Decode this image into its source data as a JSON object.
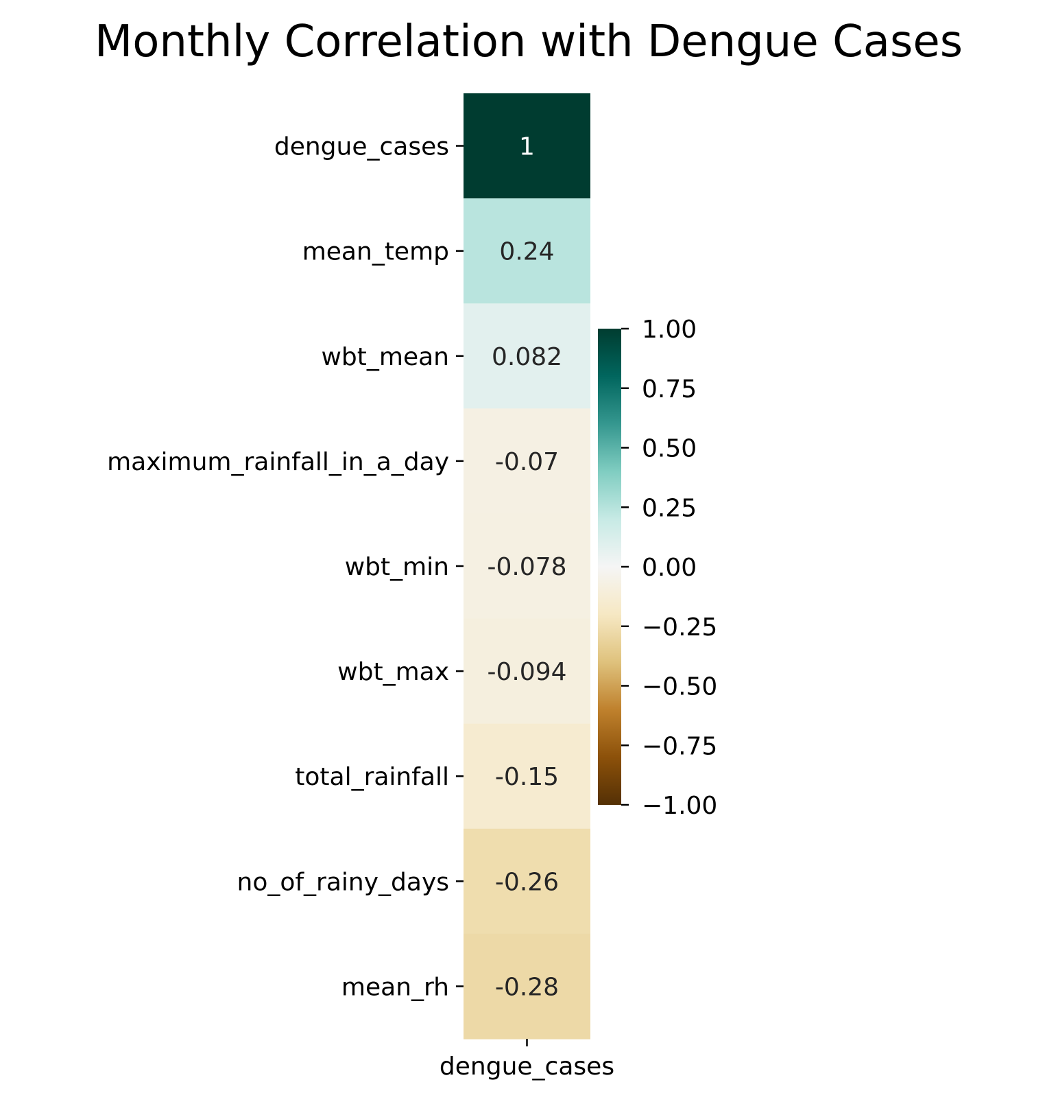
{
  "chart_data": {
    "type": "heatmap",
    "title": "Monthly Correlation with Dengue Cases",
    "columns": [
      "dengue_cases"
    ],
    "rows": [
      "dengue_cases",
      "mean_temp",
      "wbt_mean",
      "maximum_rainfall_in_a_day",
      "wbt_min",
      "wbt_max",
      "total_rainfall",
      "no_of_rainy_days",
      "mean_rh"
    ],
    "values": [
      1,
      0.24,
      0.082,
      -0.07,
      -0.078,
      -0.094,
      -0.15,
      -0.26,
      -0.28
    ],
    "annotations": [
      "1",
      "0.24",
      "0.082",
      "-0.07",
      "-0.078",
      "-0.094",
      "-0.15",
      "-0.26",
      "-0.28"
    ],
    "colormap": "BrBG",
    "vmin": -1,
    "vmax": 1,
    "colorbar": {
      "ticks": [
        1.0,
        0.75,
        0.5,
        0.25,
        0.0,
        -0.25,
        -0.5,
        -0.75,
        -1.0
      ],
      "tick_labels": [
        "1.00",
        "0.75",
        "0.50",
        "0.25",
        "0.00",
        "−0.25",
        "−0.50",
        "−0.75",
        "−1.00"
      ],
      "placement": "right"
    },
    "colors": {
      "low": "#543005",
      "mid": "#f5f5f5",
      "high": "#003c30",
      "annotation_dark": "#262626",
      "annotation_light": "#ffffff"
    }
  }
}
